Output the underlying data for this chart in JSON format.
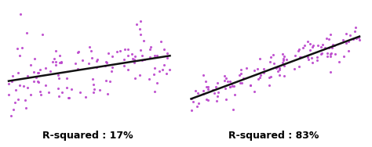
{
  "seed_low": 42,
  "seed_high": 99,
  "n_points_low": 130,
  "n_points_high": 130,
  "r_squared_low": 0.17,
  "r_squared_high": 0.83,
  "label_low": "R-squared : 17%",
  "label_high": "R-squared : 83%",
  "dot_color": "#bb44cc",
  "line_color": "#111111",
  "background_color": "#ffffff",
  "label_fontsize": 9,
  "label_fontweight": "bold",
  "dot_size": 5,
  "dot_alpha": 0.9,
  "line_width": 1.8,
  "slope_low": 0.35,
  "slope_high": 1.2,
  "intercept_low": 1.0,
  "intercept_high": 0.5
}
